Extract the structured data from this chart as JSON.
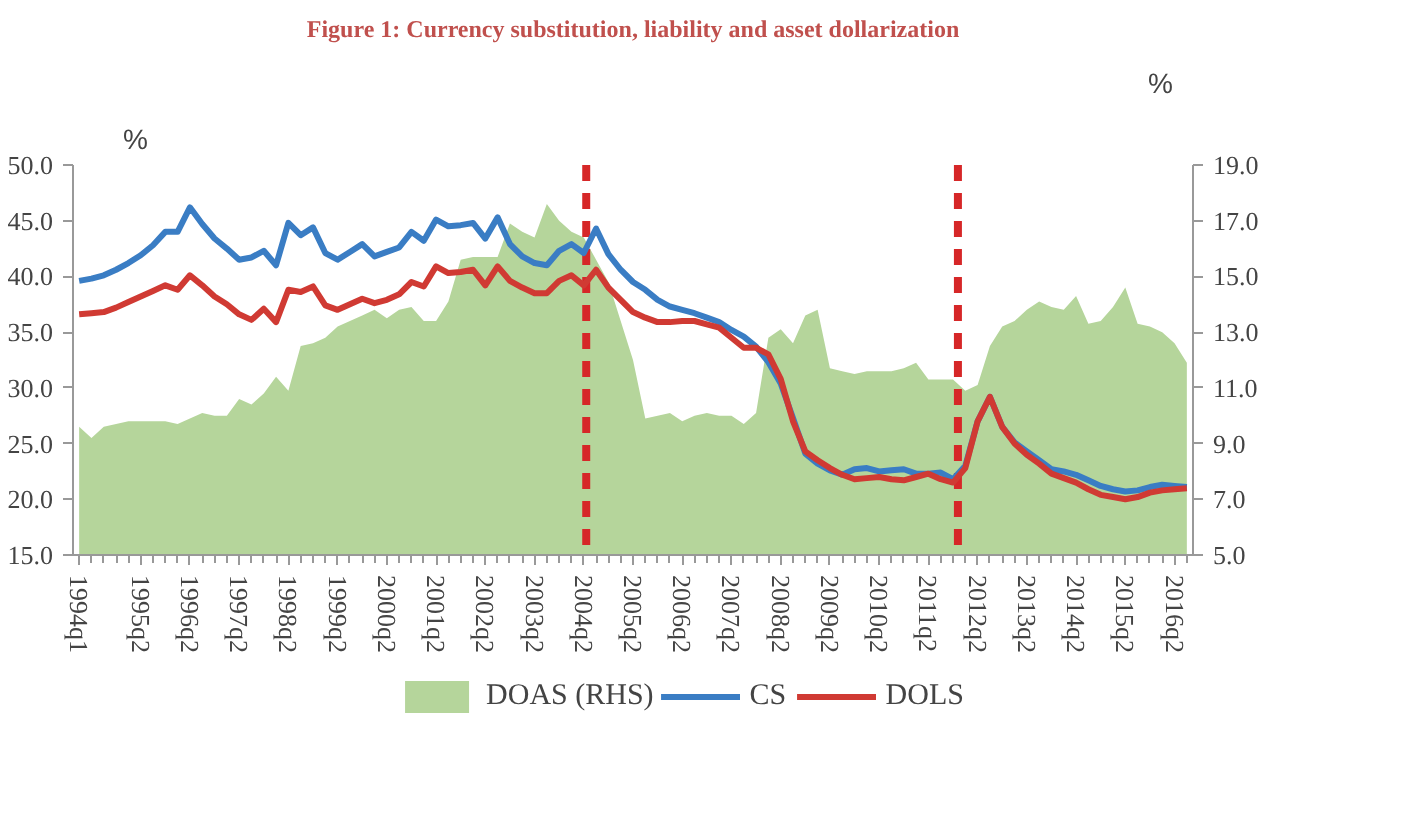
{
  "chart_data": {
    "type": "line",
    "title": "Figure 1: Currency substitution, liability and asset dollarization",
    "ylabel": "%",
    "y2label": "%",
    "categories": [
      "1994q1",
      null,
      null,
      null,
      null,
      "1995q2",
      null,
      null,
      null,
      "1996q2",
      null,
      null,
      null,
      "1997q2",
      null,
      null,
      null,
      "1998q2",
      null,
      null,
      null,
      "1999q2",
      null,
      null,
      null,
      "2000q2",
      null,
      null,
      null,
      "2001q2",
      null,
      null,
      null,
      "2002q2",
      null,
      null,
      null,
      "2003q2",
      null,
      null,
      null,
      "2004q2",
      null,
      null,
      null,
      "2005q2",
      null,
      null,
      null,
      "2006q2",
      null,
      null,
      null,
      "2007q2",
      null,
      null,
      null,
      "2008q2",
      null,
      null,
      null,
      "2009q2",
      null,
      null,
      null,
      "2010q2",
      null,
      null,
      null,
      "2011q2",
      null,
      null,
      null,
      "2012q2",
      null,
      null,
      null,
      "2013q2",
      null,
      null,
      null,
      "2014q2",
      null,
      null,
      null,
      "2015q2",
      null,
      null,
      null,
      "2016q2",
      null
    ],
    "ylim": [
      15,
      50
    ],
    "yticks": [
      {
        "value": 15,
        "label": "15.0"
      },
      {
        "value": 20,
        "label": "20.0"
      },
      {
        "value": 25,
        "label": "25.0"
      },
      {
        "value": 30,
        "label": "30.0"
      },
      {
        "value": 35,
        "label": "35.0"
      },
      {
        "value": 40,
        "label": "40.0"
      },
      {
        "value": 45,
        "label": "45.0"
      },
      {
        "value": 50,
        "label": "50.0"
      }
    ],
    "y2lim": [
      5,
      19
    ],
    "y2ticks": [
      {
        "value": 5,
        "label": "5.0"
      },
      {
        "value": 7,
        "label": "7.0"
      },
      {
        "value": 9,
        "label": "9.0"
      },
      {
        "value": 11,
        "label": "11.0"
      },
      {
        "value": 13,
        "label": "13.0"
      },
      {
        "value": 15,
        "label": "15.0"
      },
      {
        "value": 17,
        "label": "17.0"
      },
      {
        "value": 19,
        "label": "19.0"
      }
    ],
    "grid": false,
    "legend": "bottom",
    "line_style": "solid",
    "series": [
      {
        "name": "DOAS (RHS)",
        "type": "area",
        "axis": "y2",
        "color": "#b5d59b",
        "values": [
          9.6,
          9.2,
          9.6,
          9.7,
          9.8,
          9.8,
          9.8,
          9.8,
          9.7,
          9.9,
          10.1,
          10.0,
          10.0,
          10.6,
          10.4,
          10.8,
          11.4,
          10.9,
          12.5,
          12.6,
          12.8,
          13.2,
          13.4,
          13.6,
          13.8,
          13.5,
          13.8,
          13.9,
          13.4,
          13.4,
          14.1,
          15.6,
          15.7,
          15.7,
          15.7,
          16.9,
          16.6,
          16.4,
          17.6,
          17.0,
          16.6,
          16.4,
          15.6,
          14.8,
          13.4,
          12.0,
          9.9,
          10.0,
          10.1,
          9.8,
          10.0,
          10.1,
          10.0,
          10.0,
          9.7,
          10.1,
          12.8,
          13.1,
          12.6,
          13.6,
          13.8,
          11.7,
          11.6,
          11.5,
          11.6,
          11.6,
          11.6,
          11.7,
          11.9,
          11.3,
          11.3,
          11.3,
          10.9,
          11.1,
          12.5,
          13.2,
          13.4,
          13.8,
          14.1,
          13.9,
          13.8,
          14.3,
          13.3,
          13.4,
          13.9,
          14.6,
          13.3,
          13.2,
          13.0,
          12.6,
          11.9
        ]
      },
      {
        "name": "CS",
        "color": "#3a7dc4",
        "values": [
          39.6,
          39.8,
          40.1,
          40.6,
          41.2,
          41.9,
          42.8,
          44.0,
          44.0,
          46.2,
          44.7,
          43.4,
          42.5,
          41.5,
          41.7,
          42.3,
          41.0,
          44.8,
          43.7,
          44.4,
          42.1,
          41.5,
          42.2,
          42.9,
          41.8,
          42.2,
          42.6,
          44.0,
          43.2,
          45.1,
          44.5,
          44.6,
          44.8,
          43.4,
          45.3,
          42.9,
          41.8,
          41.2,
          41.0,
          42.3,
          42.9,
          42.1,
          44.3,
          42.0,
          40.6,
          39.5,
          38.8,
          37.9,
          37.3,
          37.0,
          36.7,
          36.3,
          35.9,
          35.2,
          34.6,
          33.7,
          32.3,
          30.4,
          27.3,
          24.1,
          23.2,
          22.6,
          22.2,
          22.7,
          22.8,
          22.5,
          22.6,
          22.7,
          22.3,
          22.3,
          22.4,
          21.8,
          23.0,
          27.0,
          29.2,
          26.5,
          25.1,
          24.3,
          23.5,
          22.7,
          22.5,
          22.2,
          21.7,
          21.2,
          20.9,
          20.7,
          20.8,
          21.1,
          21.3,
          21.2,
          21.1
        ]
      },
      {
        "name": "DOLS",
        "color": "#d03a33",
        "values": [
          36.6,
          36.7,
          36.8,
          37.2,
          37.7,
          38.2,
          38.7,
          39.2,
          38.8,
          40.1,
          39.2,
          38.2,
          37.5,
          36.6,
          36.1,
          37.1,
          35.9,
          38.8,
          38.6,
          39.1,
          37.4,
          37.0,
          37.5,
          38.0,
          37.6,
          37.9,
          38.4,
          39.5,
          39.1,
          40.9,
          40.3,
          40.4,
          40.6,
          39.2,
          40.9,
          39.6,
          39.0,
          38.5,
          38.5,
          39.6,
          40.1,
          39.2,
          40.6,
          39.0,
          37.9,
          36.8,
          36.3,
          35.9,
          35.9,
          36.0,
          36.0,
          35.7,
          35.4,
          34.5,
          33.6,
          33.6,
          33.0,
          30.8,
          27.0,
          24.3,
          23.5,
          22.8,
          22.2,
          21.8,
          21.9,
          22.0,
          21.8,
          21.7,
          22.0,
          22.3,
          21.8,
          21.5,
          22.8,
          27.0,
          29.2,
          26.5,
          25.0,
          24.0,
          23.2,
          22.3,
          21.9,
          21.5,
          20.9,
          20.4,
          20.2,
          20.0,
          20.2,
          20.6,
          20.8,
          20.9,
          21.0
        ]
      }
    ]
  }
}
